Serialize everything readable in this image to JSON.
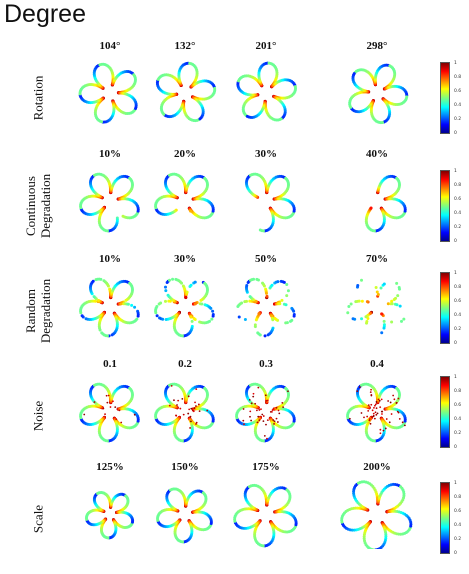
{
  "title": "Degree",
  "colorbar_ticks": [
    "1",
    "0.8",
    "0.6",
    "0.4",
    "0.2",
    "0"
  ],
  "rows": [
    {
      "label_lines": [
        "Rotation"
      ],
      "columns": [
        "104°",
        "132°",
        "201°",
        "298°"
      ]
    },
    {
      "label_lines": [
        "Continuous",
        "Degradation"
      ],
      "columns": [
        "10%",
        "20%",
        "30%",
        "40%"
      ]
    },
    {
      "label_lines": [
        "Random",
        "Degradation"
      ],
      "columns": [
        "10%",
        "30%",
        "50%",
        "70%"
      ]
    },
    {
      "label_lines": [
        "Noise"
      ],
      "columns": [
        "0.1",
        "0.2",
        "0.3",
        "0.4"
      ]
    },
    {
      "label_lines": [
        "Scale"
      ],
      "columns": [
        "125%",
        "150%",
        "175%",
        "200%"
      ]
    }
  ]
}
